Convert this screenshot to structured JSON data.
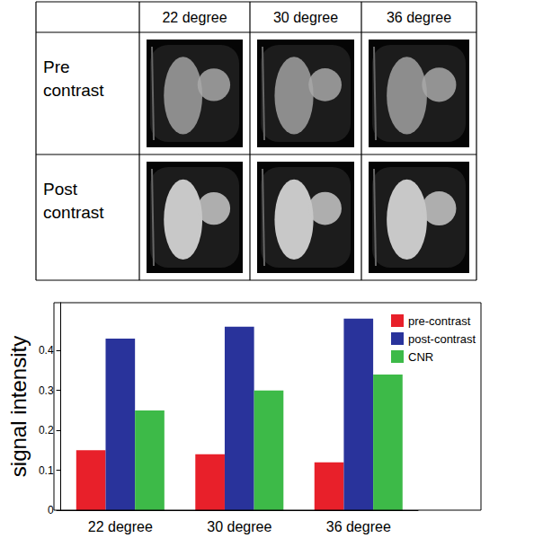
{
  "image_table": {
    "column_headers": [
      "22 degree",
      "30 degree",
      "36 degree"
    ],
    "row_headers": [
      "Pre contrast",
      "Post contrast"
    ]
  },
  "chart_data": {
    "type": "bar",
    "categories": [
      "22 degree",
      "30 degree",
      "36 degree"
    ],
    "y_label": "signal intensity",
    "series": [
      {
        "name": "pre-contrast",
        "color": "#e8202a",
        "values": [
          0.15,
          0.14,
          0.12
        ]
      },
      {
        "name": "post-contrast",
        "color": "#29339b",
        "values": [
          0.43,
          0.46,
          0.48
        ]
      },
      {
        "name": "CNR",
        "color": "#3dba48",
        "values": [
          0.25,
          0.3,
          0.34
        ]
      }
    ],
    "ylim": [
      0,
      0.52
    ],
    "yticks": [
      0,
      0.1,
      0.2,
      0.3,
      0.4
    ],
    "grid": false,
    "legend": "upper right"
  }
}
